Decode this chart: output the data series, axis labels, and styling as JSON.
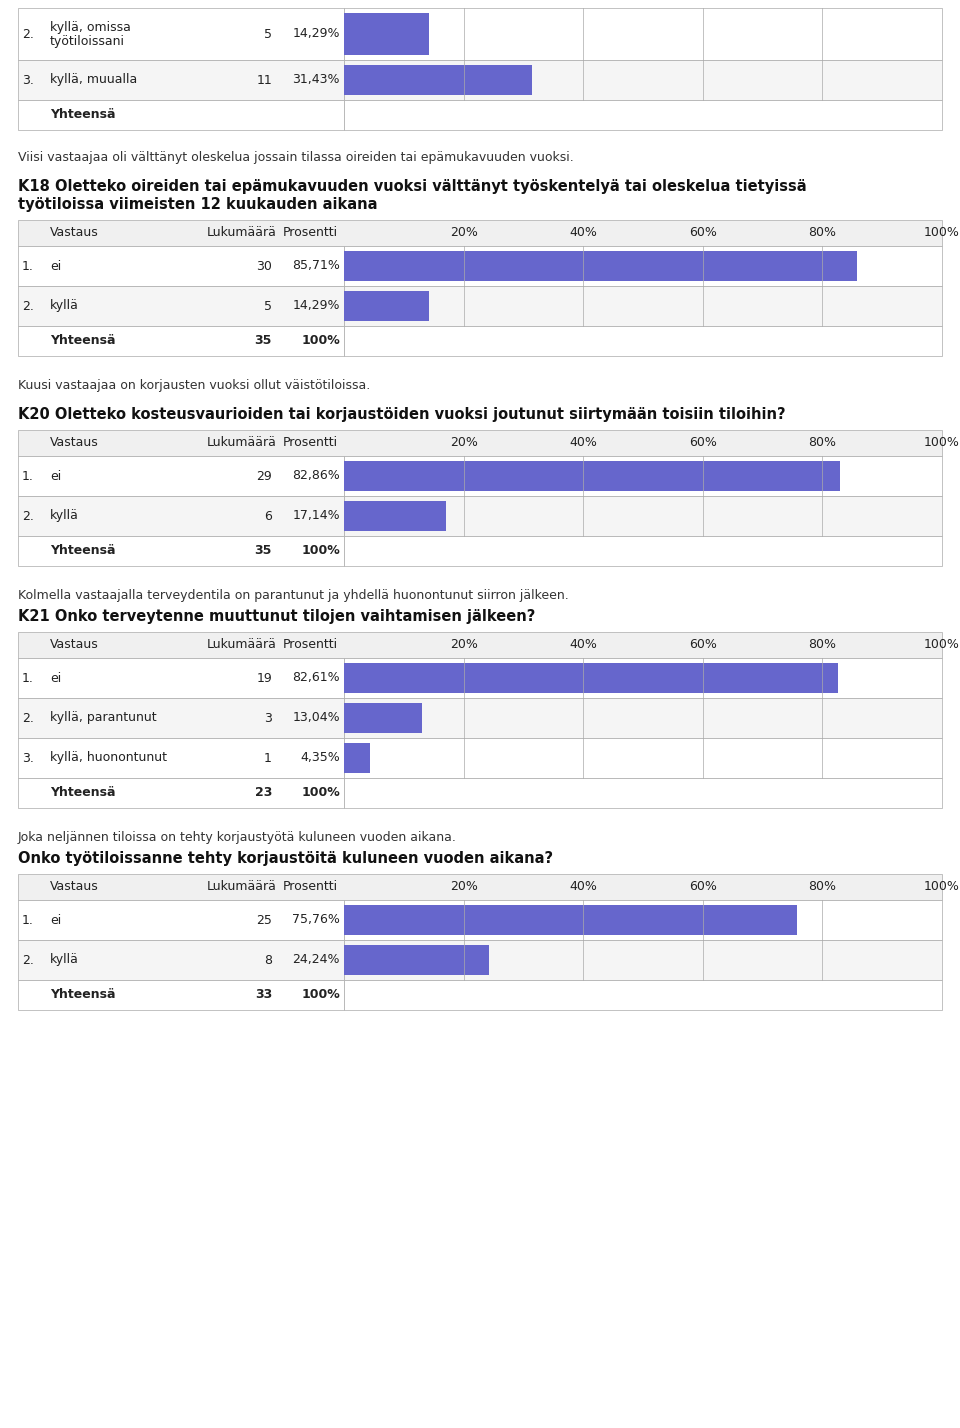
{
  "bg_color": "#ffffff",
  "text_color": "#000000",
  "bar_color": "#6666cc",
  "border_color": "#aaaaaa",
  "sections": [
    {
      "type": "partial_table",
      "rows": [
        {
          "num": "2.",
          "label": "kyllä, omissa\ntyötiloissani",
          "count": 5,
          "pct": "14,29%",
          "pct_val": 14.29,
          "tall": true
        },
        {
          "num": "3.",
          "label": "kyllä, muualla",
          "count": 11,
          "pct": "31,43%",
          "pct_val": 31.43,
          "tall": false
        }
      ],
      "yhteensa": {
        "count": "",
        "pct": ""
      }
    },
    {
      "type": "text",
      "content": "Viisi vastaajaa oli välttänyt oleskelua jossain tilassa oireiden tai epämukavuuden vuoksi."
    },
    {
      "type": "heading",
      "lines": [
        "K18 Oletteko oireiden tai epämukavuuden vuoksi välttänyt työskentelyä tai oleskelua tietyissä",
        "työtiloissa viimeisten 12 kuukauden aikana"
      ]
    },
    {
      "type": "table",
      "rows": [
        {
          "num": "1.",
          "label": "ei",
          "count": 30,
          "pct": "85,71%",
          "pct_val": 85.71
        },
        {
          "num": "2.",
          "label": "kyllä",
          "count": 5,
          "pct": "14,29%",
          "pct_val": 14.29
        }
      ],
      "yhteensa": {
        "count": "35",
        "pct": "100%"
      }
    },
    {
      "type": "text",
      "content": "Kuusi vastaajaa on korjausten vuoksi ollut väistötiloissa."
    },
    {
      "type": "heading",
      "lines": [
        "K20 Oletteko kosteusvaurioiden tai korjaustöiden vuoksi joutunut siirtymään toisiin tiloihin?"
      ]
    },
    {
      "type": "table",
      "rows": [
        {
          "num": "1.",
          "label": "ei",
          "count": 29,
          "pct": "82,86%",
          "pct_val": 82.86
        },
        {
          "num": "2.",
          "label": "kyllä",
          "count": 6,
          "pct": "17,14%",
          "pct_val": 17.14
        }
      ],
      "yhteensa": {
        "count": "35",
        "pct": "100%"
      }
    },
    {
      "type": "text",
      "content": "Kolmella vastaajalla terveydentila on parantunut ja yhdellä huonontunut siirron jälkeen."
    },
    {
      "type": "heading",
      "lines": [
        "K21 Onko terveytenne muuttunut tilojen vaihtamisen jälkeen?"
      ]
    },
    {
      "type": "table",
      "rows": [
        {
          "num": "1.",
          "label": "ei",
          "count": 19,
          "pct": "82,61%",
          "pct_val": 82.61
        },
        {
          "num": "2.",
          "label": "kyllä, parantunut",
          "count": 3,
          "pct": "13,04%",
          "pct_val": 13.04
        },
        {
          "num": "3.",
          "label": "kyllä, huonontunut",
          "count": 1,
          "pct": "4,35%",
          "pct_val": 4.35
        }
      ],
      "yhteensa": {
        "count": "23",
        "pct": "100%"
      }
    },
    {
      "type": "text",
      "content": "Joka neljännen tiloissa on tehty korjaustyötä kuluneen vuoden aikana."
    },
    {
      "type": "heading",
      "lines": [
        "Onko työtiloissanne tehty korjaustöitä kuluneen vuoden aikana?"
      ]
    },
    {
      "type": "table",
      "rows": [
        {
          "num": "1.",
          "label": "ei",
          "count": 25,
          "pct": "75,76%",
          "pct_val": 75.76
        },
        {
          "num": "2.",
          "label": "kyllä",
          "count": 8,
          "pct": "24,24%",
          "pct_val": 24.24
        }
      ],
      "yhteensa": {
        "count": "33",
        "pct": "100%"
      }
    }
  ],
  "col_header": [
    "Vastaus",
    "Lukumäärä",
    "Prosentti",
    "20%",
    "40%",
    "60%",
    "80%",
    "100%"
  ]
}
